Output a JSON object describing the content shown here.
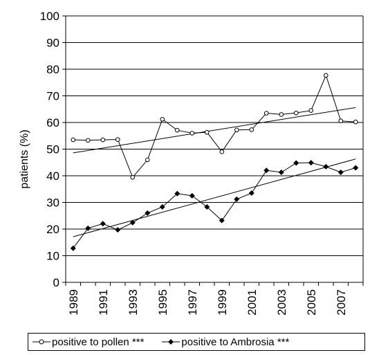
{
  "chart_data": {
    "type": "line",
    "ylabel": "patients (%)",
    "xlabel": "",
    "ylim": [
      0,
      100
    ],
    "ytick_step": 10,
    "grid": "horizontal",
    "x": [
      1989,
      1990,
      1991,
      1992,
      1993,
      1994,
      1995,
      1996,
      1997,
      1998,
      1999,
      2000,
      2001,
      2002,
      2003,
      2004,
      2005,
      2006,
      2007,
      2008
    ],
    "xtick_labels": [
      "1989",
      "1991",
      "1993",
      "1995",
      "1997",
      "1999",
      "2001",
      "2003",
      "2005",
      "2007"
    ],
    "series": [
      {
        "name": "positive to pollen ***",
        "marker": "open-circle",
        "color": "#000000",
        "values": [
          53.5,
          53.3,
          53.5,
          53.6,
          39.4,
          46.0,
          61.2,
          57.1,
          56.0,
          56.3,
          49.0,
          57.2,
          57.3,
          63.5,
          63.0,
          63.6,
          64.5,
          77.7,
          60.6,
          60.2
        ],
        "trend": [
          48.6,
          65.6
        ]
      },
      {
        "name": "positive to Ambrosia ***",
        "marker": "filled-diamond",
        "color": "#000000",
        "values": [
          12.8,
          20.3,
          22.0,
          19.7,
          22.4,
          26.0,
          28.3,
          33.3,
          32.5,
          28.3,
          23.2,
          31.2,
          33.5,
          42.0,
          41.3,
          44.8,
          44.9,
          43.4,
          41.3,
          43.0
        ],
        "trend": [
          17.1,
          46.3
        ]
      }
    ]
  }
}
